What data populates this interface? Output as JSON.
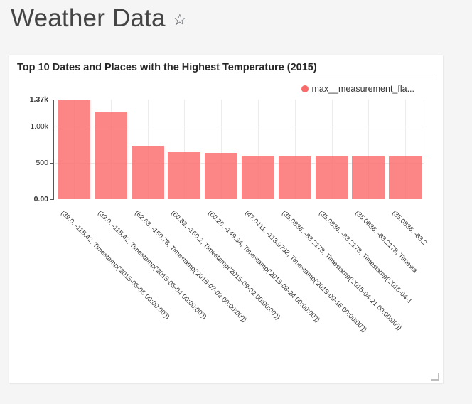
{
  "page": {
    "title": "Weather Data",
    "favorite_star_icon": "☆",
    "background_color": "#f5f5f5"
  },
  "card": {
    "title": "Top 10 Dates and Places with the Highest Temperature (2015)",
    "legend": {
      "label": "max__measurement_fla...",
      "dot_color": "#fa6a6a"
    }
  },
  "chart_data": {
    "type": "bar",
    "title": "Top 10 Dates and Places with the Highest Temperature (2015)",
    "series_name": "max__measurement_fla...",
    "bar_color_rgba": "rgba(251,112,112,0.85)",
    "legend_position": "top-right",
    "grid": true,
    "xlabel": "",
    "ylabel": "",
    "ylim": [
      0,
      1373
    ],
    "yticks": [
      {
        "label": "0.00",
        "value": 0,
        "bold": true
      },
      {
        "label": "500",
        "value": 500,
        "bold": false
      },
      {
        "label": "1.00k",
        "value": 1000,
        "bold": false
      },
      {
        "label": "1.37k",
        "value": 1373,
        "bold": true
      }
    ],
    "categories": [
      "(39.0, -115.42, Timestamp('2015-05-05 00:00:00'))",
      "(39.0, -115.42, Timestamp('2015-05-04 00:00:00'))",
      "(62.63, -150.78, Timestamp('2015-07-02 00:00:00'))",
      "(60.32, -160.2, Timestamp('2015-09-02 00:00:00'))",
      "(60.26, -149.34, Timestamp('2015-08-24 00:00:00'))",
      "(47.0411, -113.9792, Timestamp('2015-09-16 00:00:00'))",
      "(35.0836, -83.2178, Timestamp('2015-04-21 00:00:00'))",
      "(35.0836, -83.2178, Timestamp('2015-04-1",
      "(35.0836, -83.2178, Timesta",
      "(35.0836, -83.2"
    ],
    "values": [
      1373,
      1206,
      735,
      647,
      637,
      600,
      592,
      590,
      589,
      588
    ]
  },
  "resize_handle_icon": "corner-resize"
}
